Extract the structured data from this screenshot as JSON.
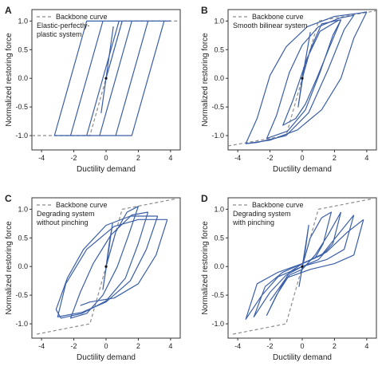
{
  "colors": {
    "loop": "#3a5fa8",
    "backbone": "#8c8c8c",
    "axis": "#333333",
    "text": "#222222"
  },
  "chart_data": [
    {
      "type": "line",
      "panel": "A",
      "legend": "Backbone curve",
      "description": [
        "Elastic-perfectly-",
        "plastic system"
      ],
      "xlabel": "Ductility demand",
      "ylabel": "Normalized restoring force",
      "xlim": [
        -4.6,
        4.6
      ],
      "ylim": [
        -1.25,
        1.2
      ],
      "xticks": [
        "-4",
        "-2",
        "0",
        "2",
        "4"
      ],
      "yticks": [
        "-1.0",
        "-0.5",
        "0.0",
        "0.5",
        "1.0"
      ],
      "grid": false,
      "backbone": [
        [
          -4.6,
          -1.0
        ],
        [
          -1.0,
          -1.0
        ],
        [
          1.0,
          1.0
        ],
        [
          4.6,
          1.0
        ]
      ],
      "loops": [
        [
          [
            0,
            0
          ],
          [
            0.2,
            0.4
          ],
          [
            0.45,
            0.9
          ],
          [
            0.2,
            0.4
          ],
          [
            -0.3,
            -0.6
          ],
          [
            0.1,
            0.2
          ]
        ],
        [
          [
            0,
            0
          ],
          [
            1.0,
            1.0
          ],
          [
            1.6,
            1.0
          ],
          [
            -0.4,
            -1.0
          ],
          [
            -1.2,
            -1.0
          ],
          [
            0.8,
            1.0
          ],
          [
            2.6,
            1.0
          ],
          [
            0.6,
            -1.0
          ],
          [
            -2.2,
            -1.0
          ],
          [
            -0.2,
            1.0
          ],
          [
            3.6,
            1.0
          ],
          [
            1.6,
            -1.0
          ],
          [
            -3.2,
            -1.0
          ],
          [
            -1.2,
            1.0
          ],
          [
            4.0,
            1.0
          ]
        ]
      ]
    },
    {
      "type": "line",
      "panel": "B",
      "legend": "Backbone curve",
      "description": [
        "Smooth bilinear system"
      ],
      "xlabel": "Ductility demand",
      "ylabel": "Normalized restoring force",
      "xlim": [
        -4.6,
        4.6
      ],
      "ylim": [
        -1.25,
        1.2
      ],
      "xticks": [
        "-4",
        "-2",
        "0",
        "2",
        "4"
      ],
      "yticks": [
        "-1.0",
        "-0.5",
        "0.0",
        "0.5",
        "1.0"
      ],
      "grid": false,
      "backbone": [
        [
          -4.6,
          -1.18
        ],
        [
          -1.0,
          -1.0
        ],
        [
          1.0,
          1.0
        ],
        [
          4.6,
          1.18
        ]
      ],
      "loops": [
        [
          [
            0,
            0
          ],
          [
            0.25,
            0.4
          ],
          [
            0.5,
            0.8
          ],
          [
            0.25,
            0.4
          ],
          [
            -0.25,
            -0.5
          ],
          [
            0.1,
            0.2
          ]
        ],
        [
          [
            0,
            0
          ],
          [
            0.5,
            0.5
          ],
          [
            1.2,
            0.95
          ],
          [
            2.0,
            1.0
          ],
          [
            2.4,
            1.02
          ],
          [
            1.7,
            0.55
          ],
          [
            0.9,
            0.0
          ],
          [
            0.2,
            -0.45
          ],
          [
            -0.4,
            -0.7
          ],
          [
            -1.2,
            -0.82
          ],
          [
            -0.6,
            -0.4
          ],
          [
            0.3,
            0.35
          ],
          [
            1.1,
            0.82
          ],
          [
            2.3,
            1.02
          ]
        ],
        [
          [
            2.4,
            1.02
          ],
          [
            1.9,
            0.75
          ],
          [
            1.1,
            0.1
          ],
          [
            0.2,
            -0.55
          ],
          [
            -0.9,
            -0.92
          ],
          [
            -2.2,
            -1.05
          ],
          [
            -1.6,
            -0.65
          ],
          [
            -0.8,
            0.1
          ],
          [
            0.0,
            0.58
          ],
          [
            1.0,
            0.9
          ],
          [
            2.3,
            1.05
          ],
          [
            3.2,
            1.1
          ]
        ],
        [
          [
            3.2,
            1.1
          ],
          [
            2.6,
            0.85
          ],
          [
            1.6,
            0.15
          ],
          [
            0.4,
            -0.6
          ],
          [
            -1.0,
            -1.0
          ],
          [
            -2.8,
            -1.12
          ],
          [
            -3.5,
            -1.14
          ],
          [
            -2.8,
            -0.7
          ],
          [
            -2.0,
            0.05
          ],
          [
            -1.0,
            0.55
          ],
          [
            0.3,
            0.9
          ],
          [
            2.0,
            1.08
          ],
          [
            3.6,
            1.14
          ],
          [
            4.0,
            1.16
          ]
        ],
        [
          [
            4.0,
            1.16
          ],
          [
            3.2,
            0.7
          ],
          [
            2.4,
            0.0
          ],
          [
            1.2,
            -0.55
          ],
          [
            -0.3,
            -0.9
          ],
          [
            -2.0,
            -1.08
          ],
          [
            -3.5,
            -1.14
          ]
        ]
      ]
    },
    {
      "type": "line",
      "panel": "C",
      "legend": "Backbone curve",
      "description": [
        "Degrading system",
        "without pinching"
      ],
      "xlabel": "Ductility demand",
      "ylabel": "Normalized restoring force",
      "xlim": [
        -4.6,
        4.6
      ],
      "ylim": [
        -1.25,
        1.2
      ],
      "xticks": [
        "-4",
        "-2",
        "0",
        "2",
        "4"
      ],
      "yticks": [
        "-1.0",
        "-0.5",
        "0.0",
        "0.5",
        "1.0"
      ],
      "grid": false,
      "backbone": [
        [
          -4.3,
          -1.18
        ],
        [
          -1.0,
          -1.0
        ],
        [
          1.0,
          1.0
        ],
        [
          4.3,
          1.18
        ]
      ],
      "loops": [
        [
          [
            0,
            0
          ],
          [
            0.2,
            0.4
          ],
          [
            0.4,
            0.75
          ],
          [
            0.2,
            0.35
          ],
          [
            -0.2,
            -0.4
          ],
          [
            0.1,
            0.15
          ]
        ],
        [
          [
            0,
            0
          ],
          [
            0.6,
            0.6
          ],
          [
            1.3,
            0.95
          ],
          [
            2.0,
            1.05
          ],
          [
            1.4,
            0.55
          ],
          [
            0.7,
            0.0
          ],
          [
            -0.2,
            -0.5
          ],
          [
            -1.2,
            -0.82
          ],
          [
            -2.2,
            -0.9
          ],
          [
            -1.6,
            -0.45
          ],
          [
            -0.8,
            0.05
          ],
          [
            0.3,
            0.55
          ],
          [
            1.6,
            0.9
          ],
          [
            2.6,
            0.95
          ]
        ],
        [
          [
            2.6,
            0.95
          ],
          [
            2.0,
            0.4
          ],
          [
            1.2,
            -0.2
          ],
          [
            0.0,
            -0.6
          ],
          [
            -1.5,
            -0.82
          ],
          [
            -2.8,
            -0.9
          ],
          [
            -3.1,
            -0.75
          ],
          [
            -2.4,
            -0.2
          ],
          [
            -1.4,
            0.3
          ],
          [
            0.0,
            0.72
          ],
          [
            1.5,
            0.88
          ],
          [
            3.2,
            0.88
          ]
        ],
        [
          [
            3.2,
            0.88
          ],
          [
            2.5,
            0.3
          ],
          [
            1.5,
            -0.25
          ],
          [
            0.0,
            -0.62
          ],
          [
            -1.5,
            -0.8
          ],
          [
            -3.0,
            -0.88
          ],
          [
            -2.5,
            -0.3
          ],
          [
            -1.2,
            0.3
          ],
          [
            0.5,
            0.7
          ],
          [
            2.0,
            0.82
          ],
          [
            3.8,
            0.82
          ]
        ],
        [
          [
            3.8,
            0.82
          ],
          [
            3.1,
            0.2
          ],
          [
            2.0,
            -0.3
          ],
          [
            0.5,
            -0.55
          ],
          [
            -1.0,
            -0.62
          ],
          [
            -1.6,
            -0.68
          ]
        ]
      ]
    },
    {
      "type": "line",
      "panel": "D",
      "legend": "Backbone curve",
      "description": [
        "Degrading system",
        "with pinching"
      ],
      "xlabel": "Ductility demand",
      "ylabel": "Normalized restoring force",
      "xlim": [
        -4.6,
        4.6
      ],
      "ylim": [
        -1.25,
        1.2
      ],
      "xticks": [
        "-4",
        "-2",
        "0",
        "2",
        "4"
      ],
      "yticks": [
        "-1.0",
        "-0.5",
        "0.0",
        "0.5",
        "1.0"
      ],
      "grid": false,
      "backbone": [
        [
          -4.3,
          -1.18
        ],
        [
          -1.0,
          -1.0
        ],
        [
          1.0,
          1.0
        ],
        [
          4.3,
          1.18
        ]
      ],
      "loops": [
        [
          [
            0,
            0
          ],
          [
            0.2,
            0.35
          ],
          [
            0.4,
            0.72
          ],
          [
            0.2,
            0.3
          ],
          [
            -0.2,
            -0.35
          ],
          [
            0.1,
            0.15
          ]
        ],
        [
          [
            0,
            0
          ],
          [
            0.5,
            0.5
          ],
          [
            1.2,
            0.85
          ],
          [
            1.8,
            0.95
          ],
          [
            1.3,
            0.4
          ],
          [
            0.8,
            0.15
          ],
          [
            0.0,
            0.05
          ],
          [
            -0.8,
            -0.1
          ],
          [
            -1.4,
            -0.4
          ],
          [
            -2.2,
            -0.85
          ],
          [
            -1.6,
            -0.5
          ],
          [
            -0.8,
            -0.15
          ],
          [
            0.0,
            -0.05
          ],
          [
            0.8,
            0.2
          ],
          [
            1.6,
            0.55
          ],
          [
            2.4,
            0.95
          ]
        ],
        [
          [
            2.4,
            0.95
          ],
          [
            1.9,
            0.4
          ],
          [
            1.0,
            0.12
          ],
          [
            0.0,
            0.0
          ],
          [
            -1.0,
            -0.15
          ],
          [
            -2.0,
            -0.45
          ],
          [
            -3.0,
            -0.88
          ],
          [
            -2.3,
            -0.35
          ],
          [
            -1.2,
            -0.1
          ],
          [
            0.0,
            0.05
          ],
          [
            1.2,
            0.2
          ],
          [
            2.2,
            0.55
          ],
          [
            3.2,
            0.9
          ]
        ],
        [
          [
            3.2,
            0.9
          ],
          [
            2.6,
            0.3
          ],
          [
            1.5,
            0.12
          ],
          [
            0.0,
            0.0
          ],
          [
            -1.5,
            -0.18
          ],
          [
            -2.5,
            -0.5
          ],
          [
            -3.5,
            -0.92
          ],
          [
            -2.8,
            -0.3
          ],
          [
            -1.5,
            -0.1
          ],
          [
            0.0,
            0.05
          ],
          [
            1.5,
            0.25
          ],
          [
            2.8,
            0.6
          ],
          [
            3.8,
            0.82
          ]
        ],
        [
          [
            3.8,
            0.82
          ],
          [
            3.2,
            0.2
          ],
          [
            2.0,
            0.05
          ],
          [
            0.5,
            -0.05
          ],
          [
            -1.0,
            -0.2
          ],
          [
            -2.0,
            -0.6
          ]
        ]
      ]
    }
  ]
}
